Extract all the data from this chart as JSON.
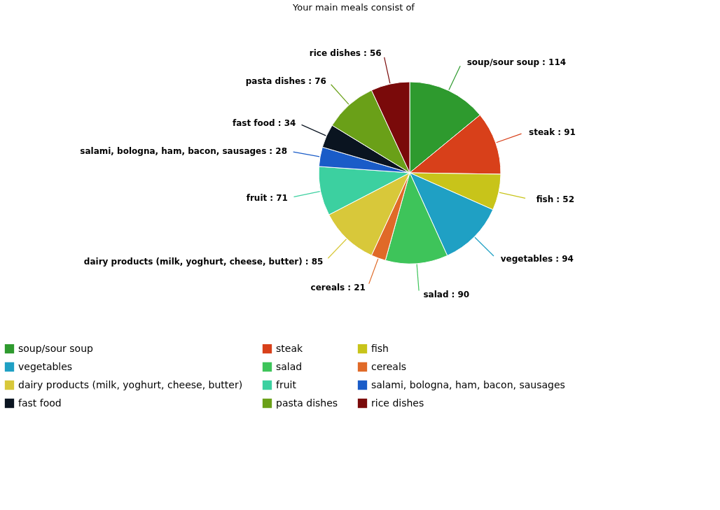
{
  "chart_data": {
    "type": "pie",
    "title": "Your main meals consist of",
    "categories": [
      "soup/sour soup",
      "steak",
      "fish",
      "vegetables",
      "salad",
      "cereals",
      "dairy products (milk, yoghurt, cheese, butter)",
      "fruit",
      "salami, bologna, ham, bacon, sausages",
      "fast food",
      "pasta dishes",
      "rice dishes"
    ],
    "values": [
      114,
      91,
      52,
      94,
      90,
      21,
      85,
      71,
      28,
      34,
      76,
      56
    ],
    "value_labels": [
      ": 114",
      ": 91",
      ": 52",
      ": 94",
      ": 90",
      ": 21",
      ": 85",
      ": 71",
      ": 28",
      ": 34",
      ": 76",
      ": 56"
    ],
    "colors": [
      "#2e9a2e",
      "#d8401a",
      "#c8c41a",
      "#1fa0c4",
      "#3ec45a",
      "#e06a28",
      "#d8c83a",
      "#3cd0a0",
      "#1a5cc8",
      "#0a1420",
      "#6aa018",
      "#7a0a0a"
    ],
    "legend": "bottom"
  }
}
